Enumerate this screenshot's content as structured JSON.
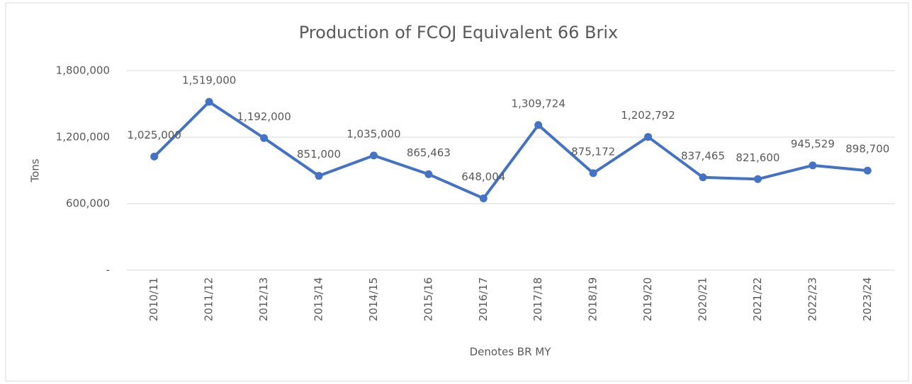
{
  "chart_data": {
    "type": "line",
    "title": "Production of FCOJ Equivalent 66 Brix",
    "x_label": "Denotes BR MY",
    "y_label": "Tons",
    "categories": [
      "2010/11",
      "2011/12",
      "2012/13",
      "2013/14",
      "2014/15",
      "2015/16",
      "2016/17",
      "2017/18",
      "2018/19",
      "2019/20",
      "2020/21",
      "2021/22",
      "2022/23",
      "2023/24"
    ],
    "series": [
      {
        "name": "Production",
        "color": "#4472c4",
        "values": [
          1025000,
          1519000,
          1192000,
          851000,
          1035000,
          865463,
          648004,
          1309724,
          875172,
          1202792,
          837465,
          821600,
          945529,
          898700
        ],
        "value_labels": [
          "1,025,000",
          "1,519,000",
          "1,192,000",
          "851,000",
          "1,035,000",
          "865,463",
          "648,004",
          "1,309,724",
          "875,172",
          "1,202,792",
          "837,465",
          "821,600",
          "945,529",
          "898,700"
        ]
      }
    ],
    "ylim": [
      0,
      1800000
    ],
    "yticks": [
      {
        "value": 0,
        "label": "-"
      },
      {
        "value": 600000,
        "label": "600,000"
      },
      {
        "value": 1200000,
        "label": "1,200,000"
      },
      {
        "value": 1800000,
        "label": "1,800,000"
      }
    ],
    "grid": true
  }
}
